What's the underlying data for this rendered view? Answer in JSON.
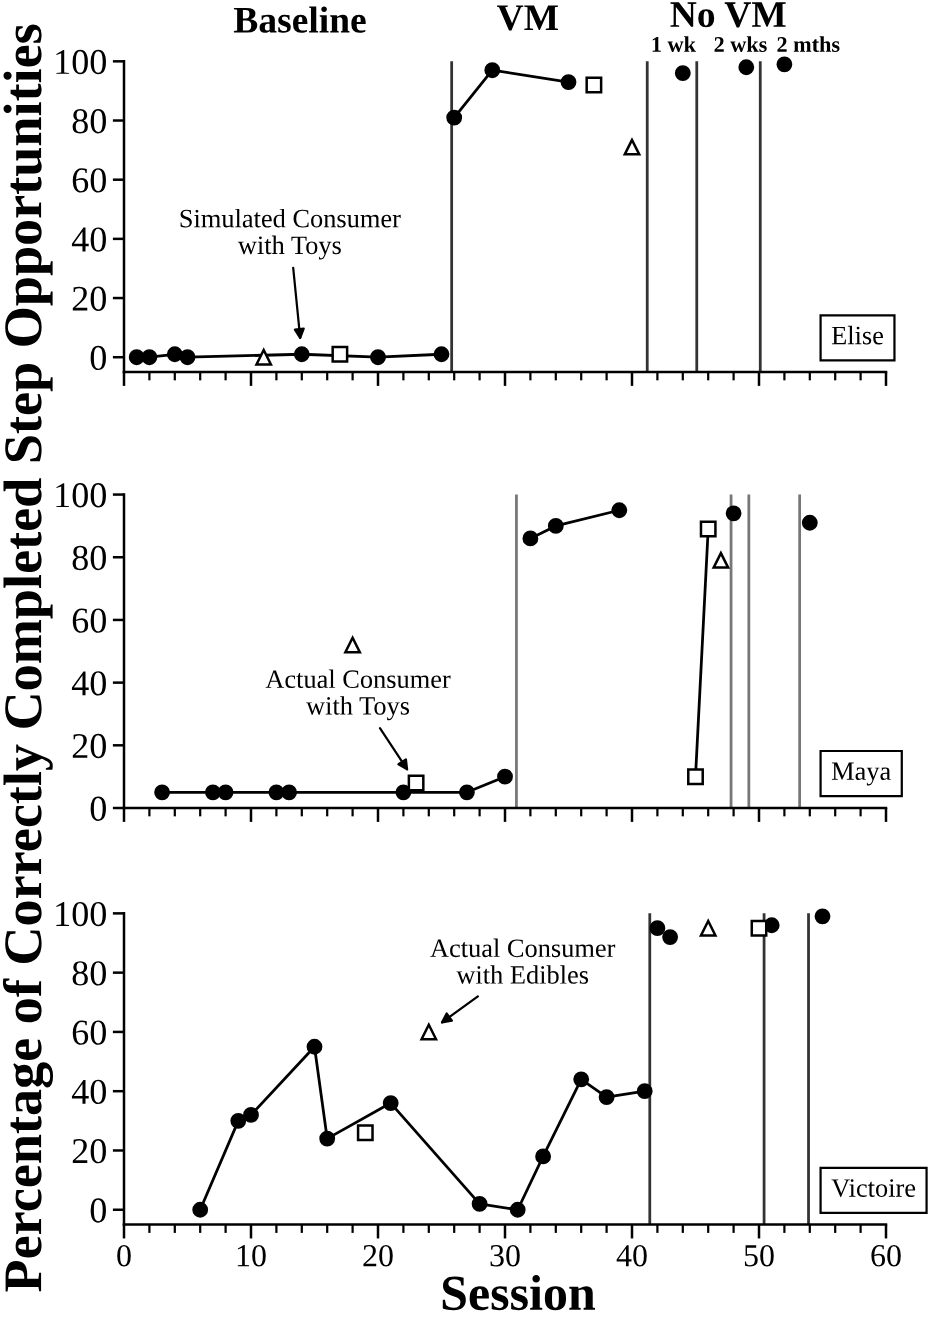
{
  "chart_data": [
    {
      "type": "line",
      "title": "Elise",
      "annotations": [
        {
          "text": "Simulated Consumer\nwith Toys",
          "x": 14,
          "y": 1
        },
        "Baseline",
        "VM",
        "No VM",
        "1 wk",
        "2 wks",
        "2 mths"
      ],
      "xlim": [
        0,
        60
      ],
      "xticks": [
        0,
        {
          "value": 2,
          "label": null
        },
        {
          "value": 4,
          "label": null
        },
        {
          "value": 6,
          "label": null
        },
        {
          "value": 8,
          "label": null
        },
        10,
        {
          "value": 12,
          "label": null
        },
        {
          "value": 14,
          "label": null
        },
        {
          "value": 16,
          "label": null
        },
        {
          "value": 18,
          "label": null
        },
        20,
        {
          "value": 22,
          "label": null
        },
        {
          "value": 24,
          "label": null
        },
        {
          "value": 26,
          "label": null
        },
        {
          "value": 28,
          "label": null
        },
        30,
        {
          "value": 32,
          "label": null
        },
        {
          "value": 34,
          "label": null
        },
        {
          "value": 36,
          "label": null
        },
        {
          "value": 38,
          "label": null
        },
        40,
        {
          "value": 42,
          "label": null
        },
        {
          "value": 44,
          "label": null
        },
        {
          "value": 46,
          "label": null
        },
        {
          "value": 48,
          "label": null
        },
        50,
        {
          "value": 52,
          "label": null
        },
        {
          "value": 54,
          "label": null
        },
        {
          "value": 56,
          "label": null
        },
        {
          "value": 58,
          "label": null
        },
        60
      ],
      "ylim": [
        -5,
        100
      ],
      "yticks": [
        0,
        20,
        40,
        60,
        80,
        100
      ],
      "tick_labels": "y",
      "series": [
        {
          "color": "#000000",
          "marker": "circle",
          "x": [
            1,
            2,
            4,
            5,
            14,
            20,
            25
          ],
          "values": [
            0,
            0,
            1,
            0,
            1,
            0,
            1
          ]
        },
        {
          "color": "#000000",
          "marker": "circle",
          "x": [
            26,
            29,
            35
          ],
          "values": [
            81,
            97,
            93
          ]
        },
        {
          "type": "scatter",
          "color": "#000000",
          "marker": "circle",
          "x": [
            44,
            49,
            52
          ],
          "values": [
            96,
            98,
            99
          ]
        },
        {
          "type": "scatter",
          "color": "#000000",
          "marker": "square",
          "x": [
            17,
            37
          ],
          "values": [
            1,
            92
          ]
        },
        {
          "type": "scatter",
          "color": "#000000",
          "marker": "triangle",
          "x": [
            11,
            40
          ],
          "values": [
            0,
            71
          ]
        }
      ],
      "ref_lines": [
        {
          "axis": "x",
          "value": 25.8,
          "color": "#333333"
        },
        {
          "axis": "x",
          "value": 41.2,
          "color": "#333333"
        },
        {
          "axis": "x",
          "value": 45.1,
          "color": "#333333"
        },
        {
          "axis": "x",
          "value": 50.1,
          "color": "#333333"
        }
      ]
    },
    {
      "type": "line",
      "title": "Maya",
      "ylabel": "Percentage of Correctly Completed Step Opportunities",
      "annotations": [
        {
          "text": "Actual Consumer\nwith Toys",
          "x": 23,
          "y": 8
        }
      ],
      "xlim": [
        0,
        60
      ],
      "xticks": [
        0,
        {
          "value": 2,
          "label": null
        },
        {
          "value": 4,
          "label": null
        },
        {
          "value": 6,
          "label": null
        },
        {
          "value": 8,
          "label": null
        },
        10,
        {
          "value": 12,
          "label": null
        },
        {
          "value": 14,
          "label": null
        },
        {
          "value": 16,
          "label": null
        },
        {
          "value": 18,
          "label": null
        },
        20,
        {
          "value": 22,
          "label": null
        },
        {
          "value": 24,
          "label": null
        },
        {
          "value": 26,
          "label": null
        },
        {
          "value": 28,
          "label": null
        },
        30,
        {
          "value": 32,
          "label": null
        },
        {
          "value": 34,
          "label": null
        },
        {
          "value": 36,
          "label": null
        },
        {
          "value": 38,
          "label": null
        },
        40,
        {
          "value": 42,
          "label": null
        },
        {
          "value": 44,
          "label": null
        },
        {
          "value": 46,
          "label": null
        },
        {
          "value": 48,
          "label": null
        },
        50,
        {
          "value": 52,
          "label": null
        },
        {
          "value": 54,
          "label": null
        },
        {
          "value": 56,
          "label": null
        },
        {
          "value": 58,
          "label": null
        },
        60
      ],
      "ylim": [
        0,
        100
      ],
      "yticks": [
        0,
        20,
        40,
        60,
        80,
        100
      ],
      "tick_labels": "y",
      "series": [
        {
          "color": "#000000",
          "marker": "circle",
          "x": [
            3,
            7,
            8,
            12,
            13,
            22,
            27,
            30
          ],
          "values": [
            5,
            5,
            5,
            5,
            5,
            5,
            5,
            10
          ]
        },
        {
          "color": "#000000",
          "marker": "circle",
          "x": [
            32,
            34,
            39
          ],
          "values": [
            86,
            90,
            95
          ]
        },
        {
          "type": "scatter",
          "color": "#000000",
          "marker": "circle",
          "x": [
            48,
            54
          ],
          "values": [
            94,
            91
          ]
        },
        {
          "type": "scatter",
          "color": "#000000",
          "marker": "square",
          "x": [
            23
          ],
          "values": [
            8
          ]
        },
        {
          "color": "#000000",
          "marker": "square",
          "x": [
            45,
            46
          ],
          "values": [
            10,
            89
          ]
        },
        {
          "type": "scatter",
          "color": "#000000",
          "marker": "triangle",
          "x": [
            18,
            47
          ],
          "values": [
            52,
            79
          ]
        }
      ],
      "ref_lines": [
        {
          "axis": "x",
          "value": 30.9,
          "color": "#777777"
        },
        {
          "axis": "x",
          "value": 47.8,
          "color": "#777777"
        },
        {
          "axis": "x",
          "value": 49.2,
          "color": "#777777"
        },
        {
          "axis": "x",
          "value": 53.2,
          "color": "#777777"
        }
      ]
    },
    {
      "type": "line",
      "title": "Victoire",
      "xlabel": "Session",
      "annotations": [
        {
          "text": "Actual Consumer\nwith Edibles",
          "x": 24,
          "y": 60
        }
      ],
      "xlim": [
        0,
        60
      ],
      "xticks": [
        0,
        {
          "value": 2,
          "label": null
        },
        {
          "value": 4,
          "label": null
        },
        {
          "value": 6,
          "label": null
        },
        {
          "value": 8,
          "label": null
        },
        10,
        {
          "value": 12,
          "label": null
        },
        {
          "value": 14,
          "label": null
        },
        {
          "value": 16,
          "label": null
        },
        {
          "value": 18,
          "label": null
        },
        20,
        {
          "value": 22,
          "label": null
        },
        {
          "value": 24,
          "label": null
        },
        {
          "value": 26,
          "label": null
        },
        {
          "value": 28,
          "label": null
        },
        30,
        {
          "value": 32,
          "label": null
        },
        {
          "value": 34,
          "label": null
        },
        {
          "value": 36,
          "label": null
        },
        {
          "value": 38,
          "label": null
        },
        40,
        {
          "value": 42,
          "label": null
        },
        {
          "value": 44,
          "label": null
        },
        {
          "value": 46,
          "label": null
        },
        {
          "value": 48,
          "label": null
        },
        50,
        {
          "value": 52,
          "label": null
        },
        {
          "value": 54,
          "label": null
        },
        {
          "value": 56,
          "label": null
        },
        {
          "value": 58,
          "label": null
        },
        60
      ],
      "ylim": [
        -5,
        100
      ],
      "yticks": [
        0,
        20,
        40,
        60,
        80,
        100
      ],
      "series": [
        {
          "color": "#000000",
          "marker": "circle",
          "x": [
            6,
            9,
            10,
            15,
            16,
            21,
            28,
            31,
            33,
            36,
            38,
            41
          ],
          "values": [
            0,
            30,
            32,
            55,
            24,
            36,
            2,
            0,
            18,
            44,
            38,
            40
          ]
        },
        {
          "type": "scatter",
          "color": "#000000",
          "marker": "circle",
          "x": [
            42,
            43,
            51,
            55
          ],
          "values": [
            95,
            92,
            96,
            99
          ]
        },
        {
          "type": "scatter",
          "color": "#000000",
          "marker": "square",
          "x": [
            19,
            50
          ],
          "values": [
            26,
            95
          ]
        },
        {
          "type": "scatter",
          "color": "#000000",
          "marker": "triangle",
          "x": [
            24,
            46
          ],
          "values": [
            60,
            95
          ]
        }
      ],
      "ref_lines": [
        {
          "axis": "x",
          "value": 41.4,
          "color": "#333333"
        },
        {
          "axis": "x",
          "value": 50.4,
          "color": "#333333"
        },
        {
          "axis": "x",
          "value": 53.9,
          "color": "#333333"
        }
      ]
    }
  ]
}
